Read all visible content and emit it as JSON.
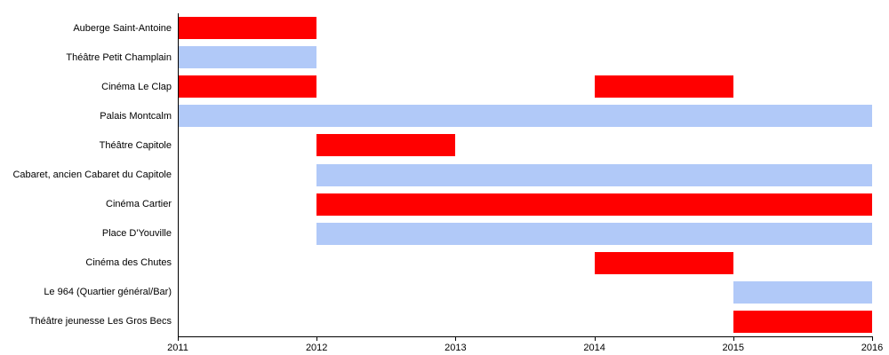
{
  "chart_data": {
    "type": "bar",
    "subtype": "gantt-timeline",
    "title": "",
    "xlabel": "",
    "ylabel": "",
    "x_ticks": [
      "2011",
      "2012",
      "2013",
      "2014",
      "2015",
      "2016"
    ],
    "x_range": [
      2011,
      2016
    ],
    "grid": false,
    "legend": false,
    "colors": {
      "red": "#ff0000",
      "blue": "#b1c9f8",
      "axis": "#000000",
      "text": "#000000",
      "background": "#ffffff"
    },
    "rows": [
      {
        "label": "Auberge Saint-Antoine",
        "segments": [
          {
            "start": 2011,
            "end": 2012,
            "color": "red"
          }
        ]
      },
      {
        "label": "Théâtre Petit Champlain",
        "segments": [
          {
            "start": 2011,
            "end": 2012,
            "color": "blue"
          }
        ]
      },
      {
        "label": "Cinéma Le Clap",
        "segments": [
          {
            "start": 2011,
            "end": 2012,
            "color": "red"
          },
          {
            "start": 2014,
            "end": 2015,
            "color": "red"
          }
        ]
      },
      {
        "label": "Palais Montcalm",
        "segments": [
          {
            "start": 2011,
            "end": 2016,
            "color": "blue"
          }
        ]
      },
      {
        "label": "Théâtre Capitole",
        "segments": [
          {
            "start": 2012,
            "end": 2013,
            "color": "red"
          }
        ]
      },
      {
        "label": "Cabaret, ancien Cabaret du Capitole",
        "segments": [
          {
            "start": 2012,
            "end": 2016,
            "color": "blue"
          }
        ]
      },
      {
        "label": "Cinéma Cartier",
        "segments": [
          {
            "start": 2012,
            "end": 2016,
            "color": "red"
          }
        ]
      },
      {
        "label": "Place D'Youville",
        "segments": [
          {
            "start": 2012,
            "end": 2016,
            "color": "blue"
          }
        ]
      },
      {
        "label": "Cinéma des Chutes",
        "segments": [
          {
            "start": 2014,
            "end": 2015,
            "color": "red"
          }
        ]
      },
      {
        "label": "Le 964 (Quartier général/Bar)",
        "segments": [
          {
            "start": 2015,
            "end": 2016,
            "color": "blue"
          }
        ]
      },
      {
        "label": "Théâtre jeunesse Les Gros Becs",
        "segments": [
          {
            "start": 2015,
            "end": 2016,
            "color": "red"
          }
        ]
      }
    ]
  }
}
